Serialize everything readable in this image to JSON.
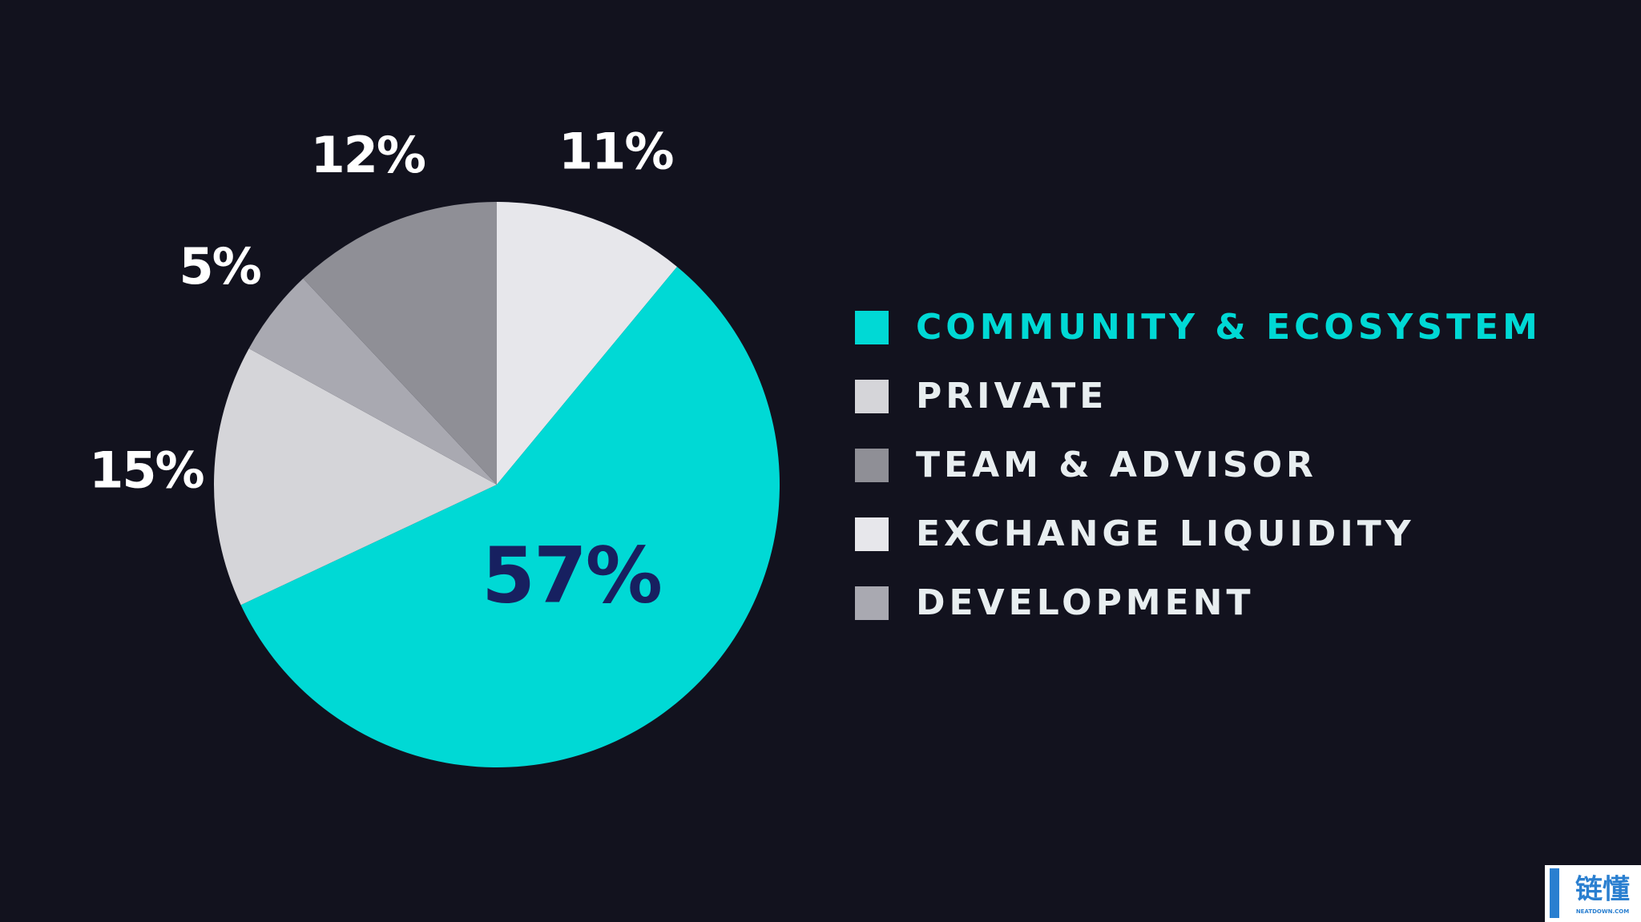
{
  "chart_data": {
    "type": "pie",
    "categories": [
      "COMMUNITY & ECOSYSTEM",
      "PRIVATE",
      "TEAM & ADVISOR",
      "EXCHANGE LIQUIDITY",
      "DEVELOPMENT"
    ],
    "values": [
      57,
      15,
      12,
      11,
      5
    ],
    "value_labels": [
      "57%",
      "15%",
      "12%",
      "11%",
      "5%"
    ],
    "colors": [
      "#00d9d5",
      "#d5d5d9",
      "#8f8f96",
      "#e7e7eb",
      "#a9a9b1"
    ],
    "slice_order": [
      3,
      0,
      1,
      4,
      2
    ],
    "highlight": 0,
    "legend": "right"
  },
  "watermark": {
    "logo": "链懂",
    "site": "NEATDOWN.COM"
  }
}
